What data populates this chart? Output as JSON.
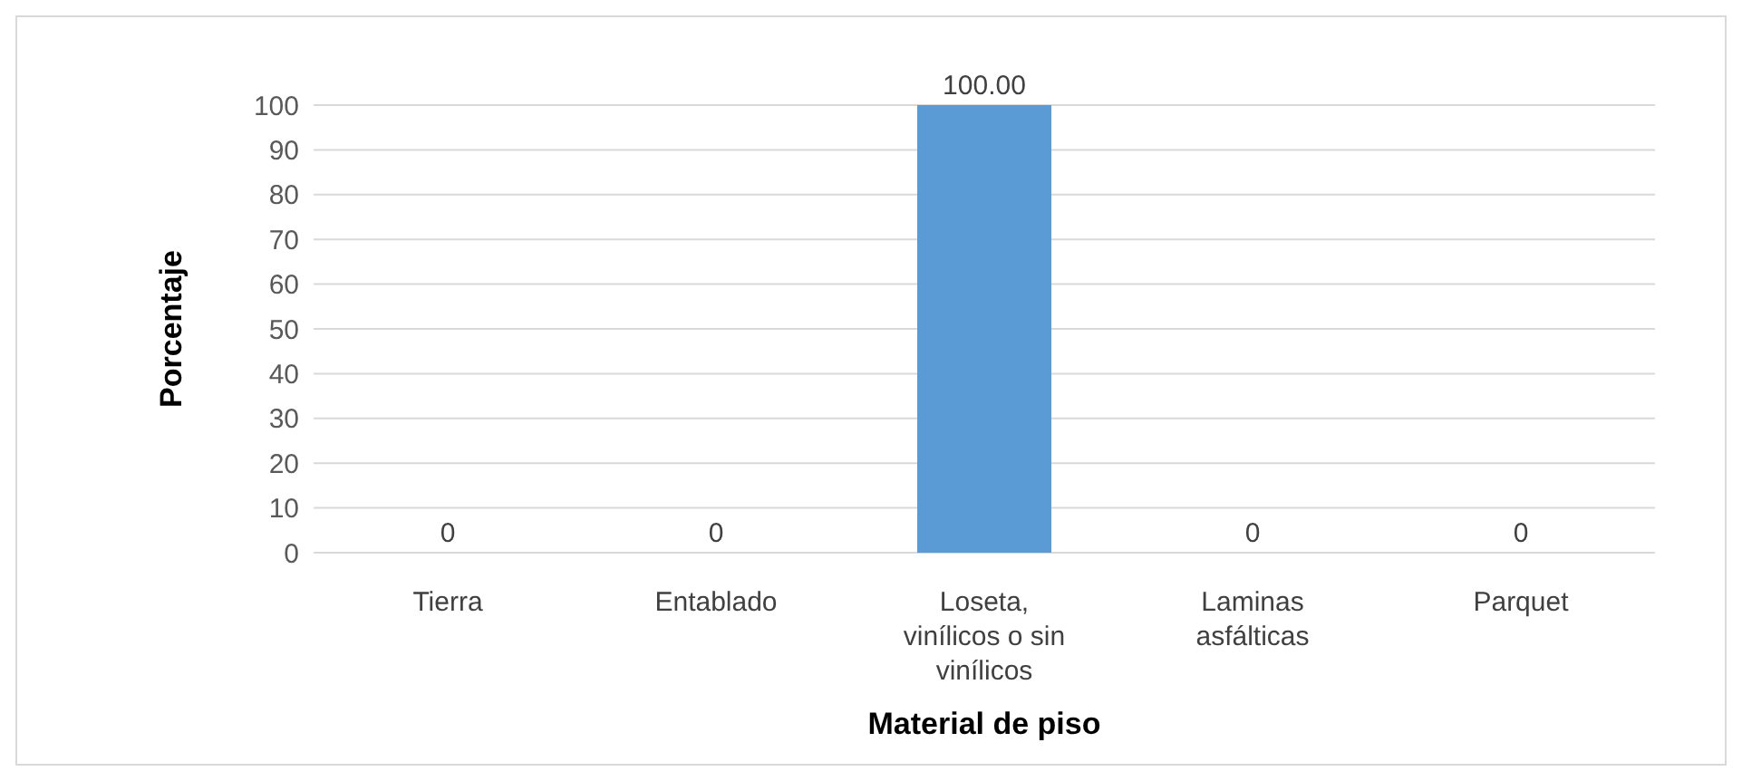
{
  "chart_data": {
    "type": "bar",
    "xlabel": "Material de piso",
    "ylabel": "Porcentaje",
    "categories": [
      "Tierra",
      "Entablado",
      "Loseta, vinílicos o sin vinílicos",
      "Laminas asfálticas",
      "Parquet"
    ],
    "values": [
      0,
      0,
      100,
      0,
      0
    ],
    "value_labels": [
      "0",
      "0",
      "100.00",
      "0",
      "0"
    ],
    "color": "#5b9bd5",
    "ylim": [
      0,
      100
    ],
    "yticks": [
      0,
      10,
      20,
      30,
      40,
      50,
      60,
      70,
      80,
      90,
      100
    ],
    "grid": "y"
  }
}
